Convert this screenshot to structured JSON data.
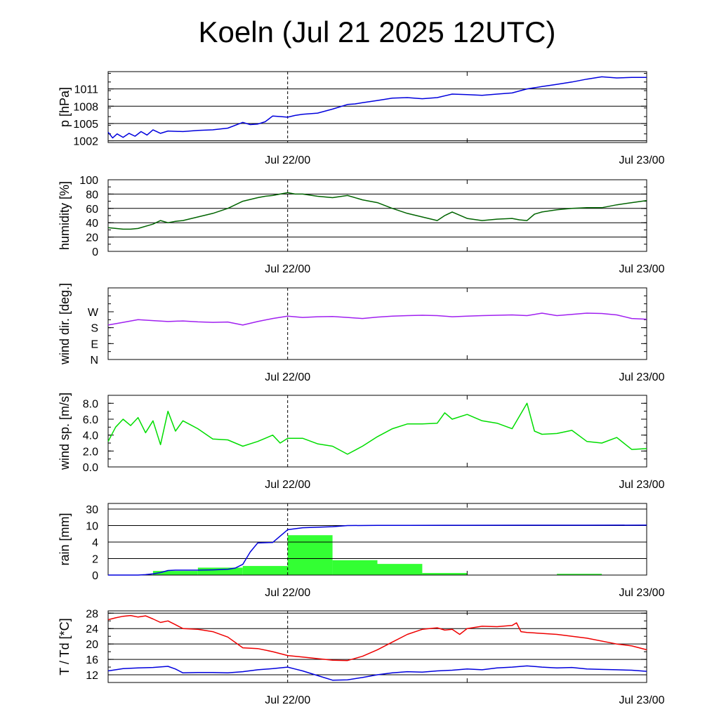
{
  "title": "Koeln (Jul 21 2025 12UTC)",
  "x_axis": {
    "start": "Jul 21 12:00",
    "end": "Jul 23 00:00",
    "tick_labels": [
      "Jul 22/00",
      "Jul 23/00"
    ],
    "tick_hours": [
      12,
      36
    ],
    "minor_tick_hours": [
      0,
      24
    ],
    "marker_hour": 12,
    "unit": "hours since Jul 21 12:00"
  },
  "chart_data": [
    {
      "type": "line",
      "ylabel": "p [hPa]",
      "ylim": [
        1001.7,
        1014.0
      ],
      "yticks": [
        1002,
        1005,
        1008,
        1011
      ],
      "ytick_labels": [
        "1002",
        "1005",
        "1008",
        "1011"
      ],
      "grid": true,
      "series": [
        {
          "color": "#0000dd",
          "x": [
            0,
            0.3,
            0.6,
            1,
            1.4,
            1.8,
            2.2,
            2.6,
            3,
            3.5,
            4,
            5,
            6,
            7,
            8,
            9,
            9.5,
            10,
            10.5,
            11,
            11.5,
            12,
            12.5,
            13,
            14,
            15,
            16,
            16.5,
            17,
            18,
            19,
            20,
            21,
            22,
            23,
            24,
            25,
            26,
            27,
            28,
            29,
            30,
            31,
            32,
            33,
            34,
            35,
            36
          ],
          "y": [
            1003.5,
            1002.5,
            1003.2,
            1002.6,
            1003.3,
            1002.8,
            1003.6,
            1003.0,
            1003.9,
            1003.3,
            1003.7,
            1003.6,
            1003.8,
            1003.9,
            1004.2,
            1005.2,
            1004.8,
            1004.9,
            1005.3,
            1006.3,
            1006.2,
            1006.1,
            1006.4,
            1006.6,
            1006.8,
            1007.5,
            1008.3,
            1008.4,
            1008.6,
            1009.0,
            1009.4,
            1009.5,
            1009.3,
            1009.5,
            1010.1,
            1010.0,
            1009.9,
            1010.1,
            1010.3,
            1011.0,
            1011.4,
            1011.8,
            1012.2,
            1012.7,
            1013.1,
            1012.9,
            1013.0,
            1013.0
          ]
        }
      ]
    },
    {
      "type": "line",
      "ylabel": "humidity [%]",
      "ylim": [
        0,
        100
      ],
      "yticks": [
        0,
        20,
        40,
        60,
        80,
        100
      ],
      "ytick_labels": [
        "0",
        "20",
        "40",
        "60",
        "80",
        "100"
      ],
      "grid": true,
      "series": [
        {
          "color": "#006400",
          "x": [
            0,
            1,
            1.5,
            2,
            3,
            3.5,
            4,
            4.5,
            5,
            6,
            7,
            8,
            8.5,
            9,
            10,
            10.5,
            11,
            11.5,
            12,
            12.5,
            13,
            14,
            15,
            16,
            17,
            18,
            19,
            20,
            21,
            22,
            22.5,
            23,
            24,
            25,
            26,
            27,
            27.5,
            28,
            28.5,
            29,
            30,
            31,
            32,
            33,
            34,
            35,
            36
          ],
          "y": [
            33,
            31,
            31,
            32,
            38,
            43,
            40,
            42,
            43,
            48,
            53,
            60,
            65,
            70,
            75,
            77,
            78,
            80,
            82,
            80,
            80,
            77,
            75,
            78,
            72,
            68,
            60,
            53,
            48,
            43,
            50,
            55,
            46,
            43,
            45,
            46,
            44,
            43,
            52,
            55,
            58,
            60,
            61,
            61,
            65,
            68,
            71
          ]
        }
      ]
    },
    {
      "type": "line",
      "ylabel": "wind dir. [deg.]",
      "ylim": [
        0,
        405
      ],
      "yticks": [
        0,
        90,
        180,
        270
      ],
      "ytick_labels": [
        "N",
        "E",
        "S",
        "W"
      ],
      "grid": false,
      "series": [
        {
          "color": "#a020f0",
          "x": [
            0,
            1,
            2,
            3,
            4,
            5,
            6,
            7,
            8,
            9,
            9.5,
            10,
            11,
            12,
            13,
            14,
            15,
            16,
            17,
            18,
            19,
            20,
            21,
            22,
            23,
            24,
            25,
            26,
            27,
            28,
            29,
            30,
            31,
            32,
            33,
            34,
            35,
            36
          ],
          "y": [
            195,
            210,
            225,
            220,
            215,
            218,
            213,
            210,
            212,
            195,
            205,
            215,
            232,
            245,
            238,
            242,
            243,
            238,
            232,
            240,
            245,
            248,
            250,
            248,
            242,
            245,
            248,
            250,
            252,
            248,
            262,
            248,
            255,
            262,
            260,
            252,
            232,
            228
          ]
        }
      ]
    },
    {
      "type": "line",
      "ylabel": "wind sp. [m/s]",
      "ylim": [
        0,
        9.0
      ],
      "yticks": [
        0,
        2,
        4,
        6,
        8
      ],
      "ytick_labels": [
        "0.0",
        "2.0",
        "4.0",
        "6.0",
        "8.0"
      ],
      "grid": false,
      "series": [
        {
          "color": "#00dd00",
          "x": [
            0,
            0.5,
            1,
            1.5,
            2,
            2.5,
            3,
            3.5,
            4,
            4.5,
            5,
            5.5,
            6,
            7,
            8,
            9,
            10,
            11,
            11.5,
            12,
            13,
            14,
            15,
            16,
            17,
            18,
            19,
            20,
            21,
            22,
            22.5,
            23,
            24,
            25,
            26,
            27,
            28,
            28.5,
            29,
            30,
            31,
            32,
            33,
            34,
            35,
            36
          ],
          "y": [
            3.2,
            5.0,
            6.0,
            5.2,
            6.2,
            4.3,
            5.8,
            2.8,
            7.0,
            4.5,
            5.8,
            5.3,
            4.8,
            3.5,
            3.4,
            2.6,
            3.2,
            4.0,
            3.0,
            3.6,
            3.6,
            2.9,
            2.6,
            1.6,
            2.6,
            3.8,
            4.8,
            5.4,
            5.4,
            5.5,
            6.8,
            6.0,
            6.6,
            5.8,
            5.5,
            4.8,
            8.0,
            4.5,
            4.1,
            4.2,
            4.6,
            3.2,
            3.0,
            3.7,
            2.2,
            2.3
          ]
        }
      ]
    },
    {
      "type": "bar",
      "ylabel": "rain [mm]",
      "yticks": [
        0,
        2,
        4,
        10,
        30
      ],
      "ytick_labels": [
        "0",
        "2",
        "4",
        "10",
        "30"
      ],
      "grid": true,
      "scale": "piecewise: 0-2-4-10-30 equally spaced",
      "bars": {
        "color": "#33ff33",
        "x_start": [
          0,
          3,
          6,
          9,
          12,
          15,
          18,
          21,
          24,
          27,
          30,
          33
        ],
        "x_end": [
          3,
          6,
          9,
          12,
          15,
          18,
          21,
          24,
          27,
          30,
          33,
          36
        ],
        "values": [
          0,
          0.5,
          0.9,
          1.1,
          6.5,
          1.8,
          1.35,
          0.25,
          0,
          0,
          0.15,
          0
        ]
      },
      "series": [
        {
          "color": "#0000dd",
          "type": "line",
          "x": [
            0,
            2,
            2.5,
            3,
            3.5,
            4,
            4.5,
            5,
            6,
            7,
            8,
            8.5,
            9,
            9.5,
            10,
            11,
            12,
            13,
            14,
            15,
            16,
            18,
            20,
            24,
            28,
            32,
            36
          ],
          "y": [
            0,
            0,
            0.05,
            0.15,
            0.3,
            0.55,
            0.6,
            0.6,
            0.6,
            0.63,
            0.7,
            0.85,
            1.3,
            2.8,
            3.9,
            3.95,
            8.5,
            9.2,
            9.4,
            9.6,
            10.0,
            10.2,
            10.2,
            10.3,
            10.4,
            10.4,
            10.5
          ]
        }
      ]
    },
    {
      "type": "line",
      "ylabel": "T / Td [*C]",
      "ylim": [
        10,
        28.6
      ],
      "yticks": [
        12,
        16,
        20,
        24,
        28
      ],
      "ytick_labels": [
        "12",
        "16",
        "20",
        "24",
        "28"
      ],
      "grid": true,
      "series": [
        {
          "color": "#ee0000",
          "x": [
            0,
            0.5,
            1,
            1.5,
            2,
            2.5,
            3,
            3.5,
            4,
            4.5,
            5,
            6,
            7,
            8,
            9,
            10,
            11,
            12,
            13,
            14,
            15,
            16,
            17,
            18,
            19,
            20,
            21,
            22,
            22.5,
            23,
            23.5,
            24,
            25,
            26,
            27,
            27.3,
            27.6,
            28,
            30,
            32,
            34,
            35,
            36
          ],
          "y": [
            26.3,
            26.8,
            27.2,
            27.4,
            27.0,
            27.3,
            26.5,
            25.6,
            26.0,
            25.0,
            24.0,
            23.8,
            23.2,
            21.8,
            19.0,
            18.8,
            18.0,
            17.0,
            16.6,
            16.2,
            15.8,
            15.7,
            16.8,
            18.5,
            20.5,
            22.5,
            23.8,
            24.2,
            23.6,
            23.8,
            22.5,
            24.0,
            24.6,
            24.5,
            24.8,
            25.5,
            23.2,
            23.0,
            22.5,
            21.5,
            20.0,
            19.5,
            18.5
          ]
        },
        {
          "color": "#0000dd",
          "x": [
            0,
            1,
            2,
            3,
            4,
            4.5,
            5,
            6,
            7,
            8,
            9,
            10,
            11,
            12,
            12.5,
            13,
            14,
            15,
            16,
            17,
            18,
            19,
            20,
            21,
            22,
            23,
            24,
            25,
            26,
            27,
            28,
            29,
            30,
            31,
            32,
            33,
            34,
            35,
            36
          ],
          "y": [
            13.0,
            13.6,
            13.8,
            13.9,
            14.2,
            13.5,
            12.5,
            12.6,
            12.6,
            12.5,
            12.8,
            13.3,
            13.6,
            14.0,
            13.5,
            13.0,
            11.8,
            10.6,
            10.7,
            11.3,
            12.0,
            12.5,
            12.8,
            12.7,
            13.0,
            13.2,
            13.5,
            13.3,
            13.8,
            14.0,
            14.3,
            14.0,
            13.8,
            13.9,
            13.5,
            13.4,
            13.3,
            13.2,
            12.9
          ]
        }
      ]
    }
  ]
}
